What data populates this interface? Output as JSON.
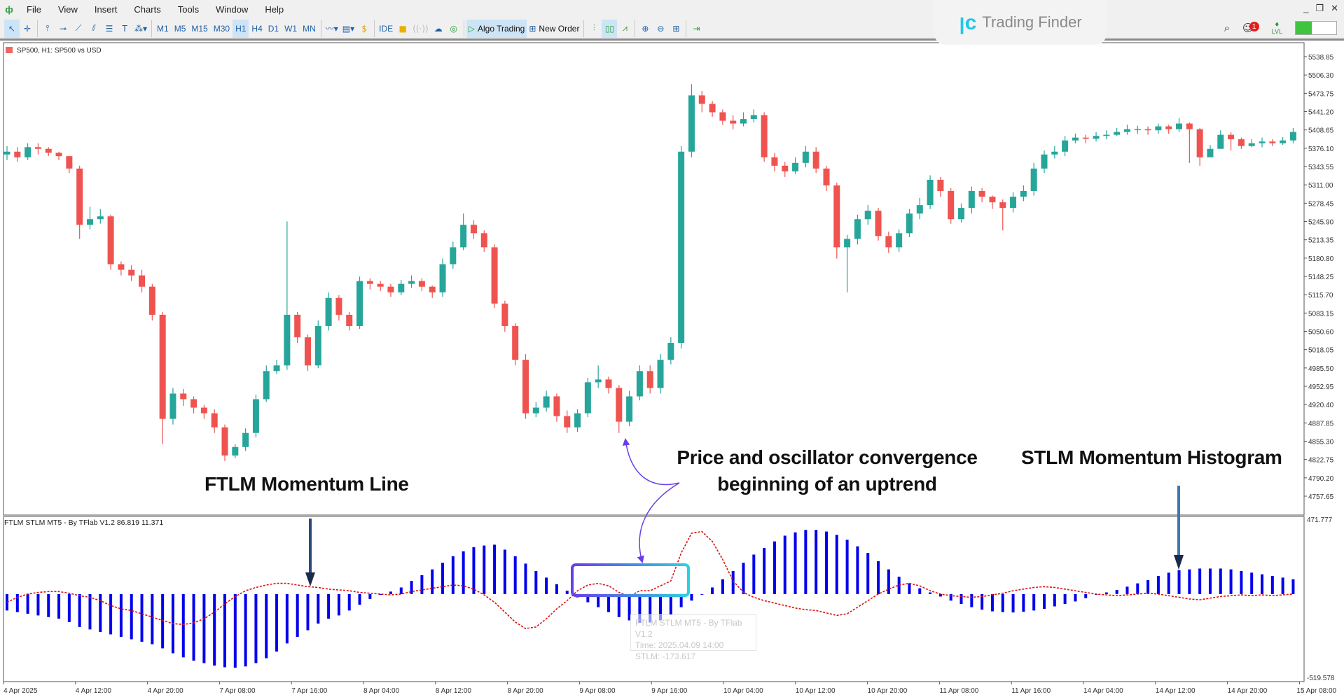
{
  "menu": {
    "items": [
      "File",
      "View",
      "Insert",
      "Charts",
      "Tools",
      "Window",
      "Help"
    ]
  },
  "toolbar": {
    "timeframes": [
      "M1",
      "M5",
      "M15",
      "M30",
      "H1",
      "H4",
      "D1",
      "W1",
      "MN"
    ],
    "active_timeframe": "H1",
    "ide_label": "IDE",
    "algo_trading_label": "Algo Trading",
    "new_order_label": "New Order",
    "notification_count": "1",
    "lvl_label": "LVL"
  },
  "logo": {
    "text": "Trading Finder"
  },
  "chart": {
    "title": "SP500, H1:  SP500 vs USD",
    "bull_color": "#26a69a",
    "bear_color": "#ef5350",
    "price_axis": [
      "5538.85",
      "5506.30",
      "5473.75",
      "5441.20",
      "5408.65",
      "5376.10",
      "5343.55",
      "5311.00",
      "5278.45",
      "5245.90",
      "5213.35",
      "5180.80",
      "5148.25",
      "5115.70",
      "5083.15",
      "5050.60",
      "5018.05",
      "4985.50",
      "4952.95",
      "4920.40",
      "4887.85",
      "4855.30",
      "4822.75",
      "4790.20",
      "4757.65"
    ],
    "time_axis": [
      "4 Apr 2025",
      "4 Apr 12:00",
      "4 Apr 20:00",
      "7 Apr 08:00",
      "7 Apr 16:00",
      "8 Apr 04:00",
      "8 Apr 12:00",
      "8 Apr 20:00",
      "9 Apr 08:00",
      "9 Apr 16:00",
      "10 Apr 04:00",
      "10 Apr 12:00",
      "10 Apr 20:00",
      "11 Apr 08:00",
      "11 Apr 16:00",
      "14 Apr 04:00",
      "14 Apr 12:00",
      "14 Apr 20:00",
      "15 Apr 08:00"
    ],
    "closes": [
      5370,
      5360,
      5378,
      5375,
      5368,
      5362,
      5340,
      5240,
      5250,
      5255,
      5170,
      5160,
      5150,
      5130,
      5080,
      4895,
      4940,
      4930,
      4915,
      4905,
      4880,
      4830,
      4845,
      4870,
      4930,
      4980,
      4990,
      5080,
      5040,
      4990,
      5060,
      5110,
      5080,
      5060,
      5140,
      5135,
      5130,
      5120,
      5135,
      5140,
      5130,
      5120,
      5170,
      5200,
      5240,
      5225,
      5200,
      5100,
      5060,
      5000,
      4905,
      4915,
      4935,
      4900,
      4880,
      4905,
      4960,
      4965,
      4950,
      4890,
      4935,
      4980,
      4950,
      5000,
      5030,
      5370,
      5470,
      5455,
      5440,
      5425,
      5420,
      5428,
      5435,
      5360,
      5345,
      5335,
      5350,
      5370,
      5340,
      5310,
      5200,
      5215,
      5250,
      5265,
      5220,
      5200,
      5225,
      5260,
      5275,
      5320,
      5300,
      5250,
      5270,
      5300,
      5290,
      5280,
      5270,
      5290,
      5300,
      5340,
      5365,
      5370,
      5390,
      5395,
      5393,
      5398,
      5400,
      5405,
      5410,
      5410,
      5408,
      5415,
      5410,
      5420,
      5410,
      5360,
      5375,
      5400,
      5392,
      5380,
      5385,
      5388,
      5385,
      5390,
      5405
    ],
    "opens_first": 5365,
    "highs": [
      5380,
      5378,
      5385,
      5385,
      5378,
      5370,
      5362,
      5345,
      5272,
      5268,
      5258,
      5175,
      5168,
      5160,
      5135,
      5085,
      4950,
      4948,
      4935,
      4920,
      4912,
      4885,
      4850,
      4878,
      4938,
      4990,
      5000,
      5246,
      5085,
      5045,
      5070,
      5120,
      5115,
      5085,
      5148,
      5145,
      5140,
      5135,
      5142,
      5150,
      5145,
      5132,
      5180,
      5210,
      5260,
      5248,
      5230,
      5205,
      5105,
      5065,
      5010,
      4925,
      4945,
      4940,
      4910,
      4912,
      4968,
      4990,
      4970,
      4955,
      4945,
      4990,
      4990,
      5010,
      5040,
      5380,
      5490,
      5478,
      5460,
      5445,
      5435,
      5440,
      5445,
      5440,
      5368,
      5352,
      5360,
      5380,
      5378,
      5345,
      5315,
      5222,
      5258,
      5275,
      5270,
      5228,
      5232,
      5268,
      5288,
      5328,
      5325,
      5305,
      5278,
      5308,
      5305,
      5292,
      5285,
      5298,
      5310,
      5350,
      5372,
      5380,
      5398,
      5402,
      5400,
      5405,
      5408,
      5412,
      5418,
      5416,
      5415,
      5420,
      5418,
      5430,
      5422,
      5412,
      5382,
      5408,
      5405,
      5395,
      5392,
      5395,
      5392,
      5396,
      5412
    ],
    "lows": [
      5355,
      5352,
      5355,
      5365,
      5362,
      5355,
      5332,
      5215,
      5232,
      5242,
      5160,
      5150,
      5140,
      5120,
      5070,
      4850,
      4885,
      4918,
      4905,
      4895,
      4870,
      4820,
      4825,
      4838,
      4862,
      4925,
      4975,
      4982,
      5030,
      4980,
      4985,
      5052,
      5070,
      5052,
      5055,
      5125,
      5122,
      5112,
      5115,
      5128,
      5122,
      5110,
      5112,
      5162,
      5195,
      5215,
      5192,
      5092,
      5050,
      4990,
      4895,
      4898,
      4908,
      4890,
      4870,
      4872,
      4898,
      4950,
      4940,
      4870,
      4882,
      4928,
      4940,
      4940,
      4992,
      5020,
      5360,
      5440,
      5432,
      5418,
      5410,
      5415,
      5422,
      5352,
      5335,
      5325,
      5330,
      5342,
      5332,
      5300,
      5180,
      5120,
      5205,
      5240,
      5212,
      5190,
      5192,
      5218,
      5250,
      5268,
      5290,
      5242,
      5244,
      5260,
      5280,
      5268,
      5230,
      5262,
      5282,
      5292,
      5332,
      5358,
      5362,
      5385,
      5385,
      5388,
      5392,
      5398,
      5400,
      5402,
      5400,
      5402,
      5402,
      5405,
      5350,
      5345,
      5365,
      5385,
      5372,
      5375,
      5378,
      5378,
      5380,
      5382,
      5385
    ]
  },
  "oscillator": {
    "title": "FTLM STLM MT5 - By TFlab V1.2 86.819 11.371",
    "axis_max": "471.777",
    "axis_min": "-519.578",
    "ymax": 471.777,
    "ymin": -519.578,
    "histogram_color": "#0000ee",
    "line_color": "#dd1111",
    "stlm": [
      -100,
      -110,
      -120,
      -130,
      -140,
      -150,
      -170,
      -200,
      -215,
      -230,
      -245,
      -260,
      -275,
      -290,
      -305,
      -330,
      -360,
      -385,
      -405,
      -420,
      -435,
      -445,
      -448,
      -440,
      -420,
      -390,
      -350,
      -300,
      -260,
      -220,
      -180,
      -150,
      -130,
      -100,
      -65,
      -30,
      -5,
      15,
      40,
      80,
      115,
      150,
      190,
      230,
      260,
      285,
      295,
      300,
      270,
      230,
      185,
      140,
      100,
      60,
      20,
      -20,
      -50,
      -80,
      -110,
      -140,
      -160,
      -175,
      -173,
      -160,
      -125,
      -80,
      -40,
      0,
      40,
      90,
      140,
      190,
      240,
      280,
      320,
      355,
      375,
      390,
      390,
      380,
      360,
      330,
      290,
      250,
      200,
      150,
      105,
      65,
      35,
      10,
      -15,
      -40,
      -60,
      -80,
      -95,
      -105,
      -110,
      -112,
      -108,
      -100,
      -90,
      -75,
      -60,
      -45,
      -25,
      -5,
      10,
      25,
      45,
      65,
      85,
      110,
      130,
      145,
      150,
      155,
      155,
      155,
      150,
      140,
      130,
      120,
      110,
      100,
      90
    ],
    "ftlm": [
      -50,
      -20,
      0,
      10,
      15,
      15,
      5,
      -10,
      -20,
      -40,
      -70,
      -90,
      -100,
      -120,
      -140,
      -160,
      -180,
      -185,
      -175,
      -150,
      -110,
      -60,
      -15,
      20,
      40,
      55,
      65,
      65,
      55,
      45,
      40,
      30,
      25,
      20,
      10,
      5,
      0,
      -5,
      0,
      15,
      25,
      35,
      45,
      55,
      50,
      30,
      -5,
      -50,
      -110,
      -170,
      -210,
      -200,
      -150,
      -90,
      -40,
      20,
      55,
      65,
      50,
      10,
      -15,
      20,
      20,
      50,
      80,
      250,
      370,
      380,
      320,
      210,
      80,
      10,
      -20,
      -40,
      -55,
      -70,
      -85,
      -95,
      -100,
      -115,
      -130,
      -120,
      -80,
      -40,
      0,
      30,
      55,
      65,
      50,
      20,
      0,
      -10,
      -15,
      -20,
      -15,
      -5,
      5,
      20,
      30,
      40,
      45,
      40,
      30,
      20,
      10,
      0,
      -5,
      -10,
      -5,
      0,
      5,
      0,
      -10,
      -20,
      -30,
      -35,
      -25,
      -15,
      -10,
      -5,
      -10,
      -5,
      -10,
      -5,
      0
    ],
    "tooltip": {
      "name": "FTLM STLM MT5 - By TFlab V1.2",
      "time": "Time: 2025.04.09 14:00",
      "value": "STLM: -173.617"
    }
  },
  "annotations": {
    "ftlm_label": "FTLM Momentum Line",
    "convergence_line1": "Price and oscillator convergence",
    "convergence_line2": "beginning of an uptrend",
    "stlm_label": "STLM Momentum Histogram",
    "box_gradient": [
      "#6a3de8",
      "#2ad1e0"
    ],
    "arrow_color": "#1a2a4a"
  }
}
